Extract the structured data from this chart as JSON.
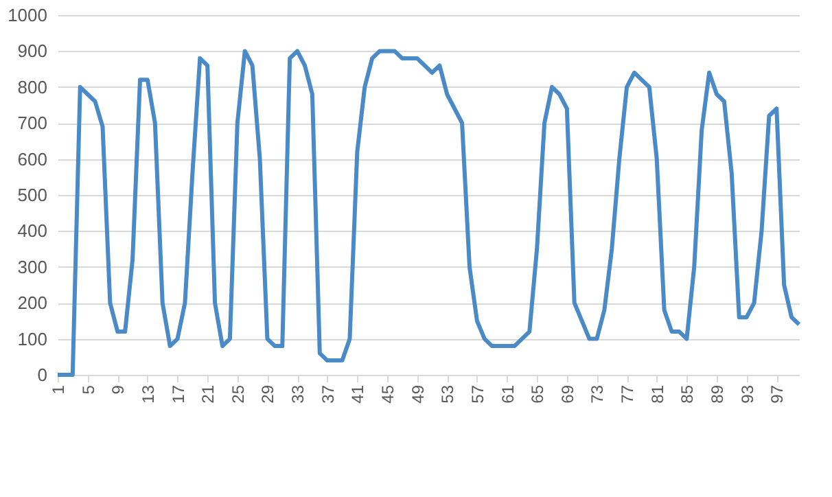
{
  "chart_data": {
    "type": "line",
    "x": [
      1,
      2,
      3,
      4,
      5,
      6,
      7,
      8,
      9,
      10,
      11,
      12,
      13,
      14,
      15,
      16,
      17,
      18,
      19,
      20,
      21,
      22,
      23,
      24,
      25,
      26,
      27,
      28,
      29,
      30,
      31,
      32,
      33,
      34,
      35,
      36,
      37,
      38,
      39,
      40,
      41,
      42,
      43,
      44,
      45,
      46,
      47,
      48,
      49,
      50,
      51,
      52,
      53,
      54,
      55,
      56,
      57,
      58,
      59,
      60,
      61,
      62,
      63,
      64,
      65,
      66,
      67,
      68,
      69,
      70,
      71,
      72,
      73,
      74,
      75,
      76,
      77,
      78,
      79,
      80,
      81,
      82,
      83,
      84,
      85,
      86,
      87,
      88,
      89,
      90,
      91,
      92,
      93,
      94,
      95,
      96,
      97,
      98,
      99,
      100
    ],
    "series": [
      {
        "color": "#4a8ac6",
        "values": [
          0,
          0,
          0,
          800,
          780,
          760,
          690,
          200,
          120,
          120,
          320,
          820,
          820,
          700,
          200,
          80,
          100,
          200,
          560,
          880,
          860,
          200,
          80,
          100,
          700,
          900,
          860,
          600,
          100,
          80,
          80,
          880,
          900,
          860,
          780,
          60,
          40,
          40,
          40,
          100,
          620,
          800,
          880,
          900,
          900,
          900,
          880,
          880,
          880,
          860,
          840,
          860,
          780,
          740,
          700,
          300,
          150,
          100,
          80,
          80,
          80,
          80,
          100,
          120,
          350,
          700,
          800,
          780,
          740,
          200,
          150,
          100,
          100,
          180,
          350,
          600,
          800,
          840,
          820,
          800,
          600,
          180,
          120,
          120,
          100,
          300,
          680,
          840,
          780,
          760,
          560,
          160,
          160,
          200,
          400,
          720,
          740,
          250,
          160,
          140
        ]
      }
    ],
    "ylim": [
      0,
      1000
    ],
    "yticks": [
      0,
      100,
      200,
      300,
      400,
      500,
      600,
      700,
      800,
      900,
      1000
    ],
    "xlim": [
      1,
      100
    ],
    "xticks": [
      1,
      5,
      9,
      13,
      17,
      21,
      25,
      29,
      33,
      37,
      41,
      45,
      49,
      53,
      57,
      61,
      65,
      69,
      73,
      77,
      81,
      85,
      89,
      93,
      97
    ],
    "grid": "y",
    "legend": false,
    "marker": "none",
    "line_style": "solid"
  }
}
